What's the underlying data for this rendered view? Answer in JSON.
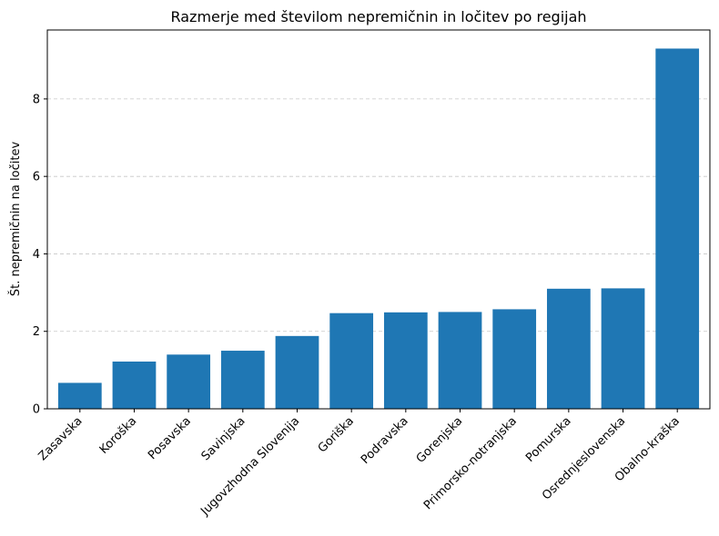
{
  "chart_data": {
    "type": "bar",
    "title": "Razmerje med številom nepremičnin in ločitev po regijah",
    "xlabel": "",
    "ylabel": "Št. nepremičnin na ločitev",
    "categories": [
      "Zasavska",
      "Koroška",
      "Posavska",
      "Savinjska",
      "Jugovzhodna Slovenija",
      "Goriška",
      "Podravska",
      "Gorenjska",
      "Primorsko-notranjska",
      "Pomurska",
      "Osrednjeslovenska",
      "Obalno-kraška"
    ],
    "values": [
      0.67,
      1.22,
      1.4,
      1.5,
      1.88,
      2.47,
      2.49,
      2.5,
      2.57,
      3.1,
      3.11,
      9.3
    ],
    "ylim": [
      0,
      9.78
    ],
    "yticks": [
      0,
      2,
      4,
      6,
      8
    ],
    "grid": "y-dashed",
    "bar_color": "#1f77b4"
  }
}
